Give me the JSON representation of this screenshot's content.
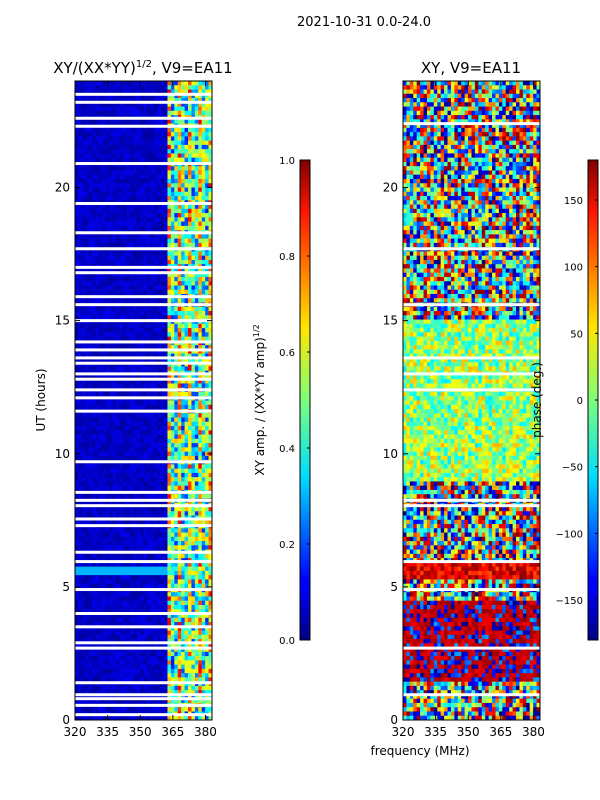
{
  "suptitle": "2021-10-31 0.0-24.0",
  "chart_data": [
    {
      "type": "heatmap",
      "title_text": "XY/(XX*YY)",
      "title_superscript": "1/2",
      "title_suffix": ", V9=EA11",
      "ylabel": "UT (hours)",
      "xlabel": "",
      "xlim": [
        320,
        383
      ],
      "ylim": [
        0,
        24
      ],
      "xticks": [
        "320",
        "335",
        "350",
        "365",
        "380"
      ],
      "xtick_values": [
        320,
        335,
        350,
        365,
        380
      ],
      "yticks": [
        "0",
        "5",
        "10",
        "15",
        "20"
      ],
      "ytick_values": [
        0,
        5,
        10,
        15,
        20
      ],
      "colorbar": {
        "label_text": "XY amp. / (XX*YY amp)",
        "label_superscript": "1/2",
        "range": [
          0.0,
          1.0
        ],
        "ticks": [
          "0.0",
          "0.2",
          "0.4",
          "0.6",
          "0.8",
          "1.0"
        ],
        "tick_values": [
          0.0,
          0.2,
          0.4,
          0.6,
          0.8,
          1.0
        ],
        "colormap": "jet"
      },
      "description": "Normalized cross-hand amplitude; mostly near 0 below 362 MHz, elevated (0.4-1.0) in channels 362-381 MHz",
      "flagged_bands_ut": [
        0.2,
        0.55,
        0.8,
        0.95,
        1.4,
        2.7,
        2.9,
        3.5,
        4.0,
        4.9,
        5.95,
        6.3,
        7.3,
        7.55,
        8.05,
        8.25,
        8.55,
        9.7,
        11.6,
        12.1,
        12.4,
        12.8,
        13.0,
        13.4,
        13.6,
        13.9,
        14.2,
        15.0,
        15.6,
        15.9,
        16.8,
        17.0,
        17.7,
        18.3,
        19.4,
        20.9,
        22.3,
        22.6,
        23.2,
        23.5
      ]
    },
    {
      "type": "heatmap",
      "title_text": "XY, V9=EA11",
      "ylabel": "",
      "xlabel": "frequency (MHz)",
      "xlim": [
        320,
        383
      ],
      "ylim": [
        0,
        24
      ],
      "xticks": [
        "320",
        "335",
        "350",
        "365",
        "380"
      ],
      "xtick_values": [
        320,
        335,
        350,
        365,
        380
      ],
      "yticks": [
        "0",
        "5",
        "10",
        "15",
        "20"
      ],
      "ytick_values": [
        0,
        5,
        10,
        15,
        20
      ],
      "colorbar": {
        "label_text": "phase (deg.)",
        "range": [
          -180,
          180
        ],
        "ticks": [
          "−150",
          "−100",
          "−50",
          "0",
          "50",
          "100",
          "150"
        ],
        "tick_values": [
          -150,
          -100,
          -50,
          0,
          50,
          100,
          150
        ],
        "colormap": "jet"
      },
      "description": "Cross-hand phase; noisy across full band, dominantly red (~150) near UT 2-4 and 5-6, mixed yellow/cyan 9-15",
      "flagged_bands_ut": [
        0.95,
        2.7,
        4.9,
        5.95,
        8.05,
        8.25,
        12.4,
        13.0,
        13.6,
        15.6,
        17.7,
        22.4
      ]
    }
  ]
}
